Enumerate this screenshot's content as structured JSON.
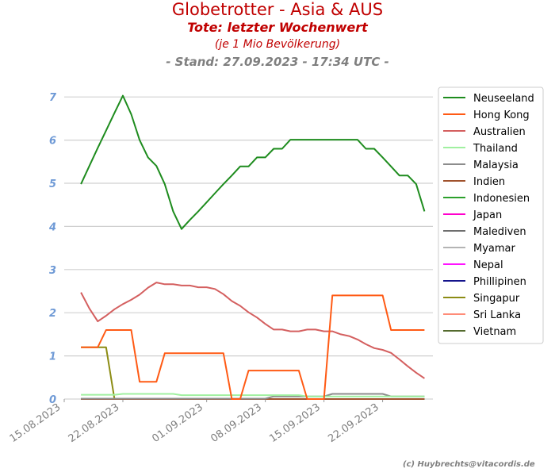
{
  "header": {
    "title": "Globetrotter - Asia & AUS",
    "subtitle": "Tote: letzter Wochenwert",
    "note": "(je 1 Mio Bevölkerung)",
    "stand": "- Stand: 27.09.2023 - 17:34 UTC -"
  },
  "credit": "(c) Huybrechts@vitacordis.de",
  "chart_data": {
    "type": "line",
    "title": "Globetrotter - Asia & AUS",
    "xlabel": "",
    "ylabel": "",
    "ylim": [
      0,
      7.5
    ],
    "yticks": [
      0,
      1,
      2,
      3,
      4,
      5,
      6,
      7
    ],
    "xlim": [
      "2023-08-15",
      "2023-09-28"
    ],
    "xticks": [
      "15.08.2023",
      "22.08.2023",
      "01.09.2023",
      "08.09.2023",
      "15.09.2023",
      "22.09.2023"
    ],
    "xtick_dates": [
      "2023-08-15",
      "2023-08-22",
      "2023-09-01",
      "2023-09-08",
      "2023-09-15",
      "2023-09-22"
    ],
    "grid": "horizontal",
    "legend_position": "top-right",
    "x": [
      "2023-08-17",
      "2023-08-18",
      "2023-08-19",
      "2023-08-20",
      "2023-08-21",
      "2023-08-22",
      "2023-08-23",
      "2023-08-24",
      "2023-08-25",
      "2023-08-26",
      "2023-08-27",
      "2023-08-28",
      "2023-08-29",
      "2023-08-30",
      "2023-08-31",
      "2023-09-01",
      "2023-09-02",
      "2023-09-03",
      "2023-09-04",
      "2023-09-05",
      "2023-09-06",
      "2023-09-07",
      "2023-09-08",
      "2023-09-09",
      "2023-09-10",
      "2023-09-11",
      "2023-09-12",
      "2023-09-13",
      "2023-09-14",
      "2023-09-15",
      "2023-09-16",
      "2023-09-17",
      "2023-09-18",
      "2023-09-19",
      "2023-09-20",
      "2023-09-21",
      "2023-09-22",
      "2023-09-23",
      "2023-09-24",
      "2023-09-25",
      "2023-09-26",
      "2023-09-27"
    ],
    "series": [
      {
        "name": "Neuseeland",
        "color": "#1e8c1e",
        "values": [
          4.98,
          5.4,
          5.82,
          6.22,
          6.63,
          7.03,
          6.6,
          6.0,
          5.6,
          5.4,
          4.98,
          4.35,
          3.94,
          4.15,
          4.35,
          4.56,
          4.77,
          4.98,
          5.18,
          5.39,
          5.39,
          5.6,
          5.6,
          5.8,
          5.8,
          6.01,
          6.01,
          6.01,
          6.01,
          6.01,
          6.01,
          6.01,
          6.01,
          6.01,
          5.8,
          5.8,
          5.6,
          5.39,
          5.18,
          5.18,
          4.98,
          4.35
        ]
      },
      {
        "name": "Hong Kong",
        "color": "#ff5a14",
        "values": [
          1.2,
          1.2,
          1.2,
          1.6,
          1.6,
          1.6,
          1.6,
          0.4,
          0.4,
          0.4,
          1.06,
          1.06,
          1.06,
          1.06,
          1.06,
          1.06,
          1.06,
          1.06,
          0.0,
          0.0,
          0.66,
          0.66,
          0.66,
          0.66,
          0.66,
          0.66,
          0.66,
          0.0,
          0.0,
          0.0,
          2.4,
          2.4,
          2.4,
          2.4,
          2.4,
          2.4,
          2.4,
          1.6,
          1.6,
          1.6,
          1.6,
          1.6
        ]
      },
      {
        "name": "Australien",
        "color": "#d45f5f",
        "values": [
          2.47,
          2.1,
          1.8,
          1.93,
          2.08,
          2.2,
          2.3,
          2.42,
          2.58,
          2.7,
          2.66,
          2.66,
          2.63,
          2.63,
          2.59,
          2.59,
          2.55,
          2.43,
          2.27,
          2.16,
          2.01,
          1.89,
          1.74,
          1.61,
          1.61,
          1.57,
          1.57,
          1.61,
          1.61,
          1.57,
          1.57,
          1.5,
          1.46,
          1.38,
          1.27,
          1.18,
          1.14,
          1.07,
          0.92,
          0.76,
          0.61,
          0.48
        ]
      },
      {
        "name": "Thailand",
        "color": "#a0f0a0",
        "values": [
          0.1,
          0.1,
          0.1,
          0.1,
          0.1,
          0.12,
          0.12,
          0.12,
          0.12,
          0.12,
          0.12,
          0.12,
          0.09,
          0.09,
          0.09,
          0.09,
          0.09,
          0.09,
          0.09,
          0.09,
          0.09,
          0.09,
          0.09,
          0.09,
          0.09,
          0.09,
          0.09,
          0.06,
          0.06,
          0.06,
          0.06,
          0.06,
          0.06,
          0.06,
          0.06,
          0.06,
          0.06,
          0.06,
          0.06,
          0.06,
          0.06,
          0.06
        ]
      },
      {
        "name": "Malaysia",
        "color": "#8c8c8c",
        "values": [
          0.01,
          0.01,
          0.01,
          0.01,
          0.01,
          0.01,
          0.01,
          0.01,
          0.01,
          0.01,
          0.01,
          0.01,
          0.01,
          0.01,
          0.01,
          0.01,
          0.01,
          0.01,
          0.01,
          0.01,
          0.01,
          0.01,
          0.01,
          0.06,
          0.06,
          0.06,
          0.06,
          0.06,
          0.06,
          0.06,
          0.12,
          0.12,
          0.12,
          0.12,
          0.12,
          0.12,
          0.12,
          0.06,
          0.06,
          0.06,
          0.06,
          0.06
        ]
      },
      {
        "name": "Indien",
        "color": "#a0522d",
        "values": [
          0.0,
          0.0,
          0.0,
          0.0,
          0.0,
          0.0,
          0.0,
          0.0,
          0.0,
          0.0,
          0.0,
          0.0,
          0.0,
          0.0,
          0.0,
          0.0,
          0.0,
          0.0,
          0.0,
          0.0,
          0.0,
          0.0,
          0.0,
          0.0,
          0.0,
          0.0,
          0.0,
          0.0,
          0.0,
          0.0,
          0.0,
          0.0,
          0.0,
          0.0,
          0.0,
          0.0,
          0.0,
          0.0,
          0.0,
          0.0,
          0.0,
          0.0
        ]
      },
      {
        "name": "Indonesien",
        "color": "#2ca02c",
        "values": [
          0.0,
          0.0,
          0.0,
          0.0,
          0.0,
          0.0,
          0.0,
          0.0,
          0.0,
          0.0,
          0.0,
          0.0,
          0.0,
          0.0,
          0.0,
          0.0,
          0.0,
          0.0,
          0.0,
          0.0,
          0.0,
          0.0,
          0.0,
          0.0,
          0.0,
          0.0,
          0.0,
          0.0,
          0.0,
          0.0,
          0.0,
          0.0,
          0.0,
          0.0,
          0.0,
          0.0,
          0.0,
          0.0,
          0.0,
          0.0,
          0.0,
          0.0
        ]
      },
      {
        "name": "Japan",
        "color": "#ff00cc",
        "values": [
          0.0,
          0.0,
          0.0,
          0.0,
          0.0,
          0.0,
          0.0,
          0.0,
          0.0,
          0.0,
          0.0,
          0.0,
          0.0,
          0.0,
          0.0,
          0.0,
          0.0,
          0.0,
          0.0,
          0.0,
          0.0,
          0.0,
          0.0,
          0.0,
          0.0,
          0.0,
          0.0,
          0.0,
          0.0,
          0.0,
          0.0,
          0.0,
          0.0,
          0.0,
          0.0,
          0.0,
          0.0,
          0.0,
          0.0,
          0.0,
          0.0,
          0.0
        ]
      },
      {
        "name": "Malediven",
        "color": "#6e6e6e",
        "values": [
          0.0,
          0.0,
          0.0,
          0.0,
          0.0,
          0.0,
          0.0,
          0.0,
          0.0,
          0.0,
          0.0,
          0.0,
          0.0,
          0.0,
          0.0,
          0.0,
          0.0,
          0.0,
          0.0,
          0.0,
          0.0,
          0.0,
          0.0,
          0.0,
          0.0,
          0.0,
          0.0,
          0.0,
          0.0,
          0.0,
          0.0,
          0.0,
          0.0,
          0.0,
          0.0,
          0.0,
          0.0,
          0.0,
          0.0,
          0.0,
          0.0,
          0.0
        ]
      },
      {
        "name": "Myamar",
        "color": "#b4b4b4",
        "values": [
          0.0,
          0.0,
          0.0,
          0.0,
          0.0,
          0.0,
          0.0,
          0.0,
          0.0,
          0.0,
          0.0,
          0.0,
          0.0,
          0.0,
          0.0,
          0.0,
          0.0,
          0.0,
          0.0,
          0.0,
          0.0,
          0.0,
          0.0,
          0.0,
          0.0,
          0.0,
          0.0,
          0.0,
          0.0,
          0.0,
          0.0,
          0.0,
          0.0,
          0.0,
          0.0,
          0.0,
          0.0,
          0.0,
          0.0,
          0.0,
          0.0,
          0.0
        ]
      },
      {
        "name": "Nepal",
        "color": "#ff14ff",
        "values": [
          0.0,
          0.0,
          0.0,
          0.0,
          0.0,
          0.0,
          0.0,
          0.0,
          0.0,
          0.0,
          0.0,
          0.0,
          0.0,
          0.0,
          0.0,
          0.0,
          0.0,
          0.0,
          0.0,
          0.0,
          0.0,
          0.0,
          0.0,
          0.0,
          0.0,
          0.0,
          0.0,
          0.0,
          0.0,
          0.0,
          0.0,
          0.0,
          0.0,
          0.0,
          0.0,
          0.0,
          0.0,
          0.0,
          0.0,
          0.0,
          0.0,
          0.0
        ]
      },
      {
        "name": "Phillipinen",
        "color": "#14148c",
        "values": [
          0.0,
          0.0,
          0.0,
          0.0,
          0.0,
          0.0,
          0.0,
          0.0,
          0.0,
          0.0,
          0.0,
          0.0,
          0.0,
          0.0,
          0.0,
          0.0,
          0.0,
          0.0,
          0.0,
          0.0,
          0.0,
          0.0,
          0.0,
          0.0,
          0.0,
          0.0,
          0.0,
          0.0,
          0.0,
          0.0,
          0.0,
          0.0,
          0.0,
          0.0,
          0.0,
          0.0,
          0.0,
          0.0,
          0.0,
          0.0,
          0.0,
          0.0
        ]
      },
      {
        "name": "Singapur",
        "color": "#8c8c14",
        "values": [
          1.2,
          1.2,
          1.2,
          1.2,
          0.0,
          0.0,
          0.0,
          0.0,
          0.0,
          0.0,
          0.0,
          0.0,
          0.0,
          0.0,
          0.0,
          0.0,
          0.0,
          0.0,
          0.0,
          0.0,
          0.0,
          0.0,
          0.0,
          0.0,
          0.0,
          0.0,
          0.0,
          0.0,
          0.0,
          0.0,
          0.0,
          0.0,
          0.0,
          0.0,
          0.0,
          0.0,
          0.0,
          0.0,
          0.0,
          0.0,
          0.0,
          0.0
        ]
      },
      {
        "name": "Sri Lanka",
        "color": "#ff8c78",
        "values": [
          0.0,
          0.0,
          0.0,
          0.0,
          0.0,
          0.0,
          0.0,
          0.0,
          0.0,
          0.0,
          0.0,
          0.0,
          0.0,
          0.0,
          0.0,
          0.0,
          0.0,
          0.0,
          0.0,
          0.0,
          0.0,
          0.0,
          0.0,
          0.0,
          0.0,
          0.0,
          0.0,
          0.0,
          0.0,
          0.0,
          0.0,
          0.0,
          0.0,
          0.0,
          0.0,
          0.0,
          0.0,
          0.0,
          0.0,
          0.0,
          0.0,
          0.0
        ]
      },
      {
        "name": "Vietnam",
        "color": "#556b2f",
        "values": [
          0.0,
          0.0,
          0.0,
          0.0,
          0.0,
          0.0,
          0.0,
          0.0,
          0.0,
          0.0,
          0.0,
          0.0,
          0.0,
          0.0,
          0.0,
          0.0,
          0.0,
          0.0,
          0.0,
          0.0,
          0.0,
          0.0,
          0.0,
          0.0,
          0.0,
          0.0,
          0.0,
          0.0,
          0.0,
          0.0,
          0.0,
          0.0,
          0.0,
          0.0,
          0.0,
          0.0,
          0.0,
          0.0,
          0.0,
          0.0,
          0.0,
          0.0
        ]
      }
    ]
  }
}
